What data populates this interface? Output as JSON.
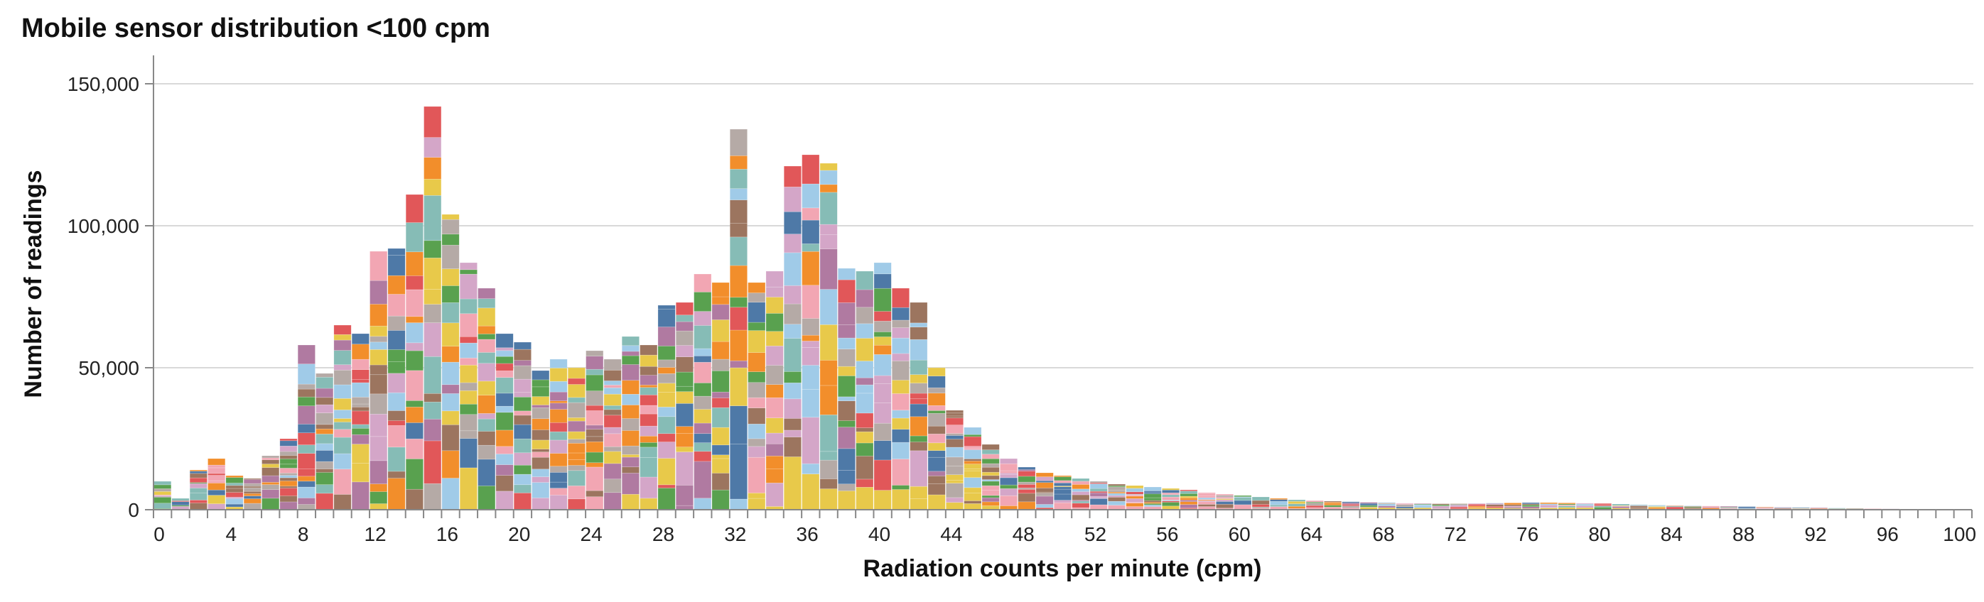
{
  "chart_data": {
    "type": "bar",
    "title": "Mobile sensor distribution <100 cpm",
    "xlabel": "Radiation counts per minute (cpm)",
    "ylabel": "Number of readings",
    "xlim": [
      0,
      101
    ],
    "ylim": [
      0,
      150000
    ],
    "x_ticks": [
      0,
      4,
      8,
      12,
      16,
      20,
      24,
      28,
      32,
      36,
      40,
      44,
      48,
      52,
      56,
      60,
      64,
      68,
      72,
      76,
      80,
      84,
      88,
      92,
      96,
      100
    ],
    "y_ticks": [
      0,
      50000,
      100000,
      150000
    ],
    "y_tick_labels": [
      "0",
      "50,000",
      "100,000",
      "150,000"
    ],
    "grid": "horizontal",
    "legend": "none",
    "stacked": true,
    "palette": [
      "#b5aaa6",
      "#f2a6b3",
      "#86bcb6",
      "#59a14f",
      "#e8c94a",
      "#f28e2b",
      "#e15759",
      "#4e79a7",
      "#9c755f",
      "#b07aa1",
      "#a0cbe8",
      "#d4a6c8"
    ],
    "bins_start": 0,
    "bin_width": 1,
    "totals": [
      10000,
      4000,
      14000,
      18000,
      12000,
      11000,
      19000,
      25000,
      58000,
      48000,
      65000,
      62000,
      91000,
      92000,
      111000,
      142000,
      104000,
      87000,
      78000,
      62000,
      59000,
      49000,
      53000,
      50000,
      56000,
      53000,
      61000,
      58000,
      72000,
      73000,
      83000,
      80000,
      134000,
      80000,
      84000,
      121000,
      125000,
      122000,
      85000,
      84000,
      87000,
      78000,
      73000,
      50000,
      35000,
      29000,
      23000,
      18000,
      15000,
      13000,
      12000,
      11000,
      10000,
      9000,
      8500,
      8000,
      7500,
      7000,
      6000,
      5500,
      5000,
      4500,
      4000,
      3500,
      3200,
      3000,
      2800,
      2600,
      2400,
      2300,
      2200,
      2100,
      2100,
      2200,
      2300,
      2400,
      2500,
      2500,
      2400,
      2300,
      2200,
      2000,
      1800,
      1600,
      1500,
      1400,
      1300,
      1200,
      1100,
      1000,
      900,
      800,
      700,
      600,
      500,
      400,
      300,
      250,
      200,
      150,
      100
    ]
  }
}
